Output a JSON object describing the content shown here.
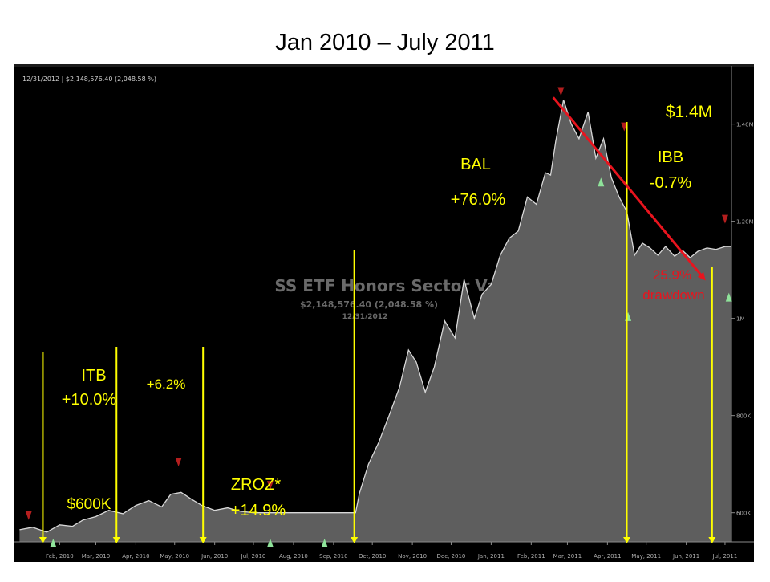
{
  "slide": {
    "title": "Jan 2010 – July 2011"
  },
  "chart_header": {
    "stamp": "12/31/2012  |  $2,148,576.40 (2,048.58 %)"
  },
  "watermark": {
    "name": "SS ETF Honors Sector Various 1",
    "value": "$2,148,576.40 (2,048.58 %)",
    "date": "12/31/2012"
  },
  "annotations": {
    "itb_name": "ITB",
    "itb_return": "+10.0%",
    "start_value": "$600K",
    "mid_return": "+6.2%",
    "zroz_name": "ZROZ*",
    "zroz_return": "+14.9%",
    "bal_name": "BAL",
    "bal_return": "+76.0%",
    "peak_value": "$1.4M",
    "ibb_name": "IBB",
    "ibb_return": "-0.7%",
    "drawdown_pct": "25.9%",
    "drawdown_label": "drawdown"
  },
  "colors": {
    "background": "#000000",
    "area_fill": "#5e5e5e",
    "area_line": "#d8d8d8",
    "annotation_text": "#ffff00",
    "entry_line": "#ffff00",
    "drawdown_line": "#e8141e",
    "drawdown_text": "#e8141e",
    "buy_marker": "#8fe39a",
    "sell_marker": "#b41e1e",
    "axis_text": "#b0b0b0"
  },
  "chart_data": {
    "type": "area",
    "title": "",
    "xlabel": "",
    "ylabel": "",
    "x_ticks": [
      "Feb, 2010",
      "Mar, 2010",
      "Apr, 2010",
      "May, 2010",
      "Jun, 2010",
      "Jul, 2010",
      "Aug, 2010",
      "Sep, 2010",
      "Oct, 2010",
      "Nov, 2010",
      "Dec, 2010",
      "Jan, 2011",
      "Feb, 2011",
      "Mar, 2011",
      "Apr, 2011",
      "May, 2011",
      "Jun, 2011",
      "Jul, 2011"
    ],
    "y_ticks": [
      "600K",
      "800K",
      "1M",
      "1.20M",
      "1.40M"
    ],
    "y_tick_values": [
      600000,
      800000,
      1000000,
      1200000,
      1400000
    ],
    "ylim": [
      540000,
      1520000
    ],
    "grid": false,
    "x": [
      "2010-01-15",
      "2010-01-25",
      "2010-02-05",
      "2010-02-15",
      "2010-02-25",
      "2010-03-05",
      "2010-03-15",
      "2010-03-25",
      "2010-04-05",
      "2010-04-15",
      "2010-04-25",
      "2010-05-05",
      "2010-05-12",
      "2010-05-20",
      "2010-05-28",
      "2010-06-05",
      "2010-06-15",
      "2010-06-25",
      "2010-07-05",
      "2010-07-15",
      "2010-07-25",
      "2010-08-05",
      "2010-08-15",
      "2010-08-25",
      "2010-09-05",
      "2010-09-15",
      "2010-09-25",
      "2010-10-02",
      "2010-10-05",
      "2010-10-12",
      "2010-10-20",
      "2010-10-28",
      "2010-11-05",
      "2010-11-12",
      "2010-11-18",
      "2010-11-25",
      "2010-12-02",
      "2010-12-10",
      "2010-12-18",
      "2010-12-25",
      "2011-01-02",
      "2011-01-08",
      "2011-01-15",
      "2011-01-22",
      "2011-01-29",
      "2011-02-05",
      "2011-02-12",
      "2011-02-19",
      "2011-02-26",
      "2011-03-02",
      "2011-03-06",
      "2011-03-12",
      "2011-03-18",
      "2011-03-24",
      "2011-03-31",
      "2011-04-06",
      "2011-04-12",
      "2011-04-18",
      "2011-04-24",
      "2011-04-30",
      "2011-05-06",
      "2011-05-12",
      "2011-05-18",
      "2011-05-24",
      "2011-05-30",
      "2011-06-06",
      "2011-06-12",
      "2011-06-18",
      "2011-06-24",
      "2011-07-01",
      "2011-07-08",
      "2011-07-15"
    ],
    "series": [
      {
        "values": [
          565000,
          570000,
          560000,
          575000,
          572000,
          585000,
          592000,
          605000,
          598000,
          615000,
          625000,
          612000,
          638000,
          642000,
          628000,
          615000,
          605000,
          610000,
          603000,
          600000,
          600000,
          600000,
          600000,
          600000,
          600000,
          600000,
          600000,
          600000,
          640000,
          700000,
          745000,
          800000,
          858000,
          935000,
          910000,
          848000,
          900000,
          995000,
          960000,
          1080000,
          1000000,
          1050000,
          1070000,
          1130000,
          1165000,
          1180000,
          1250000,
          1235000,
          1300000,
          1295000,
          1365000,
          1450000,
          1400000,
          1370000,
          1425000,
          1330000,
          1370000,
          1290000,
          1250000,
          1220000,
          1130000,
          1155000,
          1145000,
          1130000,
          1148000,
          1128000,
          1140000,
          1125000,
          1138000,
          1145000,
          1142000,
          1148000
        ]
      }
    ],
    "markers": [
      {
        "type": "sell",
        "date": "2010-01-22",
        "value": 595000
      },
      {
        "type": "buy",
        "date": "2010-02-10",
        "value": 537000
      },
      {
        "type": "sell",
        "date": "2010-05-18",
        "value": 705000
      },
      {
        "type": "sell",
        "date": "2010-07-28",
        "value": 657000
      },
      {
        "type": "buy",
        "date": "2010-07-28",
        "value": 537000
      },
      {
        "type": "buy",
        "date": "2010-09-08",
        "value": 537000
      },
      {
        "type": "sell",
        "date": "2011-03-10",
        "value": 1468000
      },
      {
        "type": "sell",
        "date": "2011-04-28",
        "value": 1395000
      },
      {
        "type": "buy",
        "date": "2011-04-10",
        "value": 1280000
      },
      {
        "type": "buy",
        "date": "2011-05-01",
        "value": 1003000
      },
      {
        "type": "sell",
        "date": "2011-07-15",
        "value": 1205000
      },
      {
        "type": "buy",
        "date": "2011-07-18",
        "value": 1043000
      }
    ],
    "entry_lines": [
      "2010-02-02",
      "2010-03-31",
      "2010-06-06",
      "2010-10-01",
      "2011-04-30",
      "2011-07-05"
    ],
    "drawdown": {
      "from_date": "2011-03-04",
      "from_value": 1455000,
      "to_date": "2011-06-30",
      "to_value": 1078000
    }
  }
}
